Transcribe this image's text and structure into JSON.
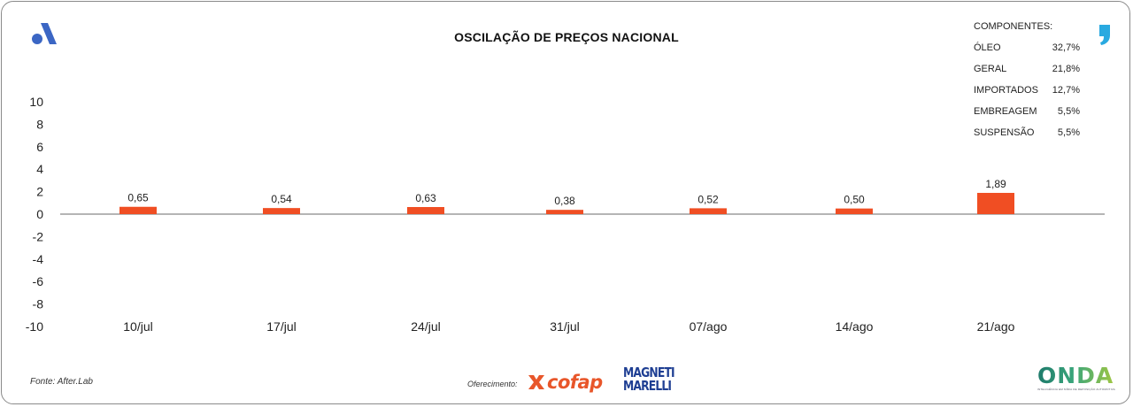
{
  "header": {
    "title": "OSCILAÇÃO DE PREÇOS NACIONAL"
  },
  "legend": {
    "title": "COMPONENTES:",
    "items": [
      {
        "label": "ÓLEO",
        "value": "32,7%"
      },
      {
        "label": "GERAL",
        "value": "21,8%"
      },
      {
        "label": "IMPORTADOS",
        "value": "12,7%"
      },
      {
        "label": "EMBREAGEM",
        "value": "5,5%"
      },
      {
        "label": "SUSPENSÃO",
        "value": "5,5%"
      }
    ]
  },
  "chart_data": {
    "type": "bar",
    "title": "OSCILAÇÃO DE PREÇOS NACIONAL",
    "categories": [
      "10/jul",
      "17/jul",
      "24/jul",
      "31/jul",
      "07/ago",
      "14/ago",
      "21/ago"
    ],
    "values": [
      0.65,
      0.54,
      0.63,
      0.38,
      0.52,
      0.5,
      1.89
    ],
    "value_labels": [
      "0,65",
      "0,54",
      "0,63",
      "0,38",
      "0,52",
      "0,50",
      "1,89"
    ],
    "yticks": [
      10,
      8,
      6,
      4,
      2,
      0,
      -2,
      -4,
      -6,
      -8,
      -10
    ],
    "ytick_labels": [
      "10",
      "8",
      "6",
      "4",
      "2",
      "0",
      "-2",
      "-4",
      "-6",
      "-8",
      "-10"
    ],
    "ylim": [
      -10,
      10
    ],
    "xlabel": "",
    "ylabel": "",
    "bar_color": "#f04e23",
    "grid": false
  },
  "footer": {
    "source": "Fonte: After.Lab",
    "offer_label": "Oferecimento:",
    "sponsor1": "cofap",
    "sponsor2_line1": "MAGNETI",
    "sponsor2_line2": "MARELLI",
    "brand": "ONDA",
    "brand_tagline": "INTELIGÊNCIA EM MÍDIA DE REPOSIÇÃO AUTOMOTIVA"
  },
  "colors": {
    "accent_blue": "#3b66c4",
    "accent_cyan": "#29a9e0",
    "bar": "#f04e23",
    "cofap": "#e8562a",
    "magneti": "#1f3f93"
  },
  "icons": {
    "brand_left": "a-logo-icon",
    "brand_right": "comma-logo-icon"
  }
}
